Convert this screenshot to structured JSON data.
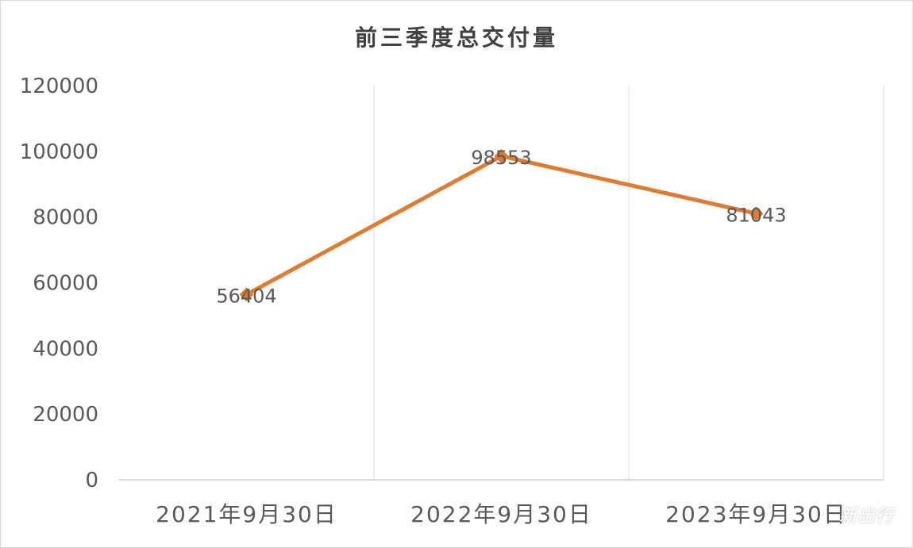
{
  "chart_data": {
    "type": "line",
    "title": "前三季度总交付量",
    "categories": [
      "2021年9月30日",
      "2022年9月30日",
      "2023年9月30日"
    ],
    "series": [
      {
        "values": [
          56404,
          98553,
          81043
        ],
        "color": "#E07B30"
      }
    ],
    "data_labels": [
      "56404",
      "98553",
      "81043"
    ],
    "ylim": [
      0,
      120000
    ],
    "yticks": [
      0,
      20000,
      40000,
      60000,
      80000,
      100000,
      120000
    ],
    "ytick_labels": [
      "0",
      "20000",
      "40000",
      "60000",
      "80000",
      "100000",
      "120000"
    ],
    "grid": "vertical",
    "marker": "diamond",
    "xlabel": "",
    "ylabel": ""
  },
  "watermark": "新出行"
}
